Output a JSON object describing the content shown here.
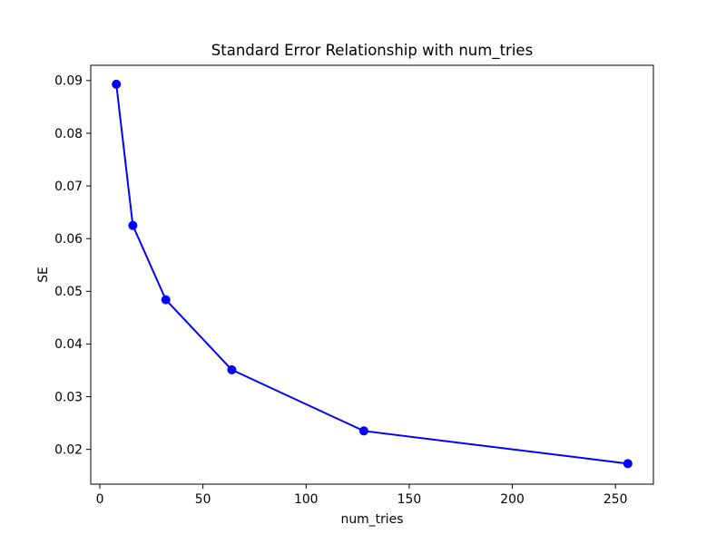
{
  "figure": {
    "background": "#ffffff"
  },
  "chart_data": {
    "type": "line",
    "title": "Standard Error Relationship with num_tries",
    "xlabel": "num_tries",
    "ylabel": "SE",
    "x": [
      8,
      16,
      32,
      64,
      128,
      256
    ],
    "y": [
      0.0893,
      0.0625,
      0.0484,
      0.0351,
      0.0235,
      0.0173
    ],
    "line_color": "#0000ff",
    "marker": "circle",
    "marker_color": "#0000ff",
    "axis_color": "#000000",
    "xlim": [
      -4.4,
      268.4
    ],
    "ylim": [
      0.0134,
      0.0929
    ],
    "xticks": [
      0,
      50,
      100,
      150,
      200,
      250
    ],
    "xtick_labels": [
      "0",
      "50",
      "100",
      "150",
      "200",
      "250"
    ],
    "yticks": [
      0.02,
      0.03,
      0.04,
      0.05,
      0.06,
      0.07,
      0.08,
      0.09
    ],
    "ytick_labels": [
      "0.02",
      "0.03",
      "0.04",
      "0.05",
      "0.06",
      "0.07",
      "0.08",
      "0.09"
    ],
    "grid": false,
    "legend_position": "none"
  }
}
